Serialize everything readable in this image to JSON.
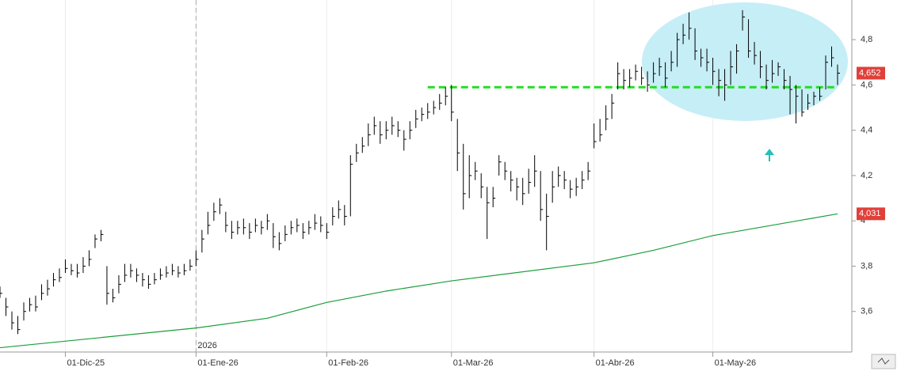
{
  "chart_data": {
    "type": "ohlc",
    "color": "#000000",
    "xlim": [
      0,
      143
    ],
    "xticks": [
      {
        "value": 11,
        "label": "01-Dic-25"
      },
      {
        "value": 33,
        "label": "01-Ene-26"
      },
      {
        "value": 55,
        "label": "01-Feb-26"
      },
      {
        "value": 76,
        "label": "01-Mar-26"
      },
      {
        "value": 100,
        "label": "01-Abr-26"
      },
      {
        "value": 120,
        "label": "01-May-26"
      }
    ],
    "year_label": {
      "value": 33,
      "label": "2026"
    },
    "ylim": [
      3.421,
      4.975
    ],
    "yticks": [
      {
        "value": 3.6,
        "label": "3,6"
      },
      {
        "value": 3.8,
        "label": "3,8"
      },
      {
        "value": 4.0,
        "label": "4"
      },
      {
        "value": 4.2,
        "label": "4,2"
      },
      {
        "value": 4.4,
        "label": "4,4"
      },
      {
        "value": 4.6,
        "label": "4,6"
      },
      {
        "value": 4.8,
        "label": "4,8"
      }
    ],
    "high": [
      3.71,
      3.66,
      3.6,
      3.58,
      3.64,
      3.66,
      3.67,
      3.72,
      3.74,
      3.77,
      3.79,
      3.83,
      3.81,
      3.81,
      3.84,
      3.87,
      3.94,
      3.96,
      3.8,
      3.7,
      3.76,
      3.81,
      3.81,
      3.79,
      3.77,
      3.76,
      3.77,
      3.79,
      3.8,
      3.81,
      3.8,
      3.81,
      3.83,
      3.87,
      3.96,
      4.04,
      4.08,
      4.1,
      4.04,
      4.0,
      4.0,
      4.01,
      3.99,
      4.01,
      4.0,
      4.03,
      3.99,
      3.95,
      3.98,
      4.0,
      4.01,
      3.99,
      4.0,
      4.03,
      4.02,
      3.99,
      4.06,
      4.09,
      4.07,
      4.29,
      4.34,
      4.37,
      4.43,
      4.46,
      4.44,
      4.44,
      4.46,
      4.44,
      4.4,
      4.44,
      4.49,
      4.5,
      4.52,
      4.53,
      4.56,
      4.59,
      4.6,
      4.45,
      4.34,
      4.29,
      4.26,
      4.21,
      4.15,
      4.15,
      4.29,
      4.26,
      4.22,
      4.19,
      4.19,
      4.23,
      4.29,
      4.22,
      4.12,
      4.22,
      4.24,
      4.22,
      4.18,
      4.19,
      4.22,
      4.26,
      4.43,
      4.45,
      4.51,
      4.56,
      4.7,
      4.67,
      4.67,
      4.69,
      4.68,
      4.66,
      4.7,
      4.72,
      4.7,
      4.75,
      4.83,
      4.87,
      4.92,
      4.85,
      4.76,
      4.76,
      4.72,
      4.67,
      4.67,
      4.75,
      4.78,
      4.93,
      4.89,
      4.79,
      4.75,
      4.69,
      4.71,
      4.7,
      4.67,
      4.64,
      4.6,
      4.58,
      4.56,
      4.57,
      4.59,
      4.73,
      4.77,
      4.69
    ],
    "low": [
      3.66,
      3.58,
      3.52,
      3.5,
      3.56,
      3.6,
      3.6,
      3.65,
      3.67,
      3.71,
      3.73,
      3.77,
      3.76,
      3.75,
      3.77,
      3.8,
      3.88,
      3.91,
      3.63,
      3.64,
      3.68,
      3.73,
      3.75,
      3.73,
      3.71,
      3.7,
      3.72,
      3.74,
      3.75,
      3.76,
      3.75,
      3.76,
      3.78,
      3.8,
      3.86,
      3.94,
      4.0,
      4.03,
      3.95,
      3.92,
      3.94,
      3.94,
      3.92,
      3.95,
      3.94,
      3.96,
      3.88,
      3.87,
      3.91,
      3.94,
      3.95,
      3.92,
      3.94,
      3.96,
      3.95,
      3.92,
      3.98,
      4.01,
      3.98,
      4.02,
      4.26,
      4.3,
      4.33,
      4.38,
      4.34,
      4.36,
      4.38,
      4.37,
      4.31,
      4.36,
      4.41,
      4.44,
      4.45,
      4.47,
      4.49,
      4.51,
      4.44,
      4.22,
      4.05,
      4.1,
      4.18,
      4.1,
      3.92,
      4.06,
      4.2,
      4.18,
      4.13,
      4.09,
      4.07,
      4.12,
      4.15,
      4.0,
      3.87,
      4.08,
      4.15,
      4.14,
      4.1,
      4.11,
      4.14,
      4.18,
      4.32,
      4.35,
      4.4,
      4.45,
      4.58,
      4.58,
      4.59,
      4.62,
      4.6,
      4.57,
      4.61,
      4.64,
      4.59,
      4.66,
      4.68,
      4.78,
      4.8,
      4.71,
      4.68,
      4.66,
      4.6,
      4.55,
      4.53,
      4.6,
      4.65,
      4.84,
      4.72,
      4.69,
      4.63,
      4.58,
      4.61,
      4.64,
      4.58,
      4.47,
      4.43,
      4.46,
      4.49,
      4.51,
      4.53,
      4.58,
      4.68,
      4.6
    ],
    "close": [
      3.68,
      3.62,
      3.55,
      3.52,
      3.6,
      3.63,
      3.62,
      3.68,
      3.7,
      3.74,
      3.75,
      3.79,
      3.78,
      3.77,
      3.8,
      3.83,
      3.92,
      3.94,
      3.68,
      3.66,
      3.72,
      3.76,
      3.78,
      3.76,
      3.74,
      3.72,
      3.74,
      3.76,
      3.77,
      3.78,
      3.77,
      3.78,
      3.8,
      3.83,
      3.92,
      3.98,
      4.04,
      4.07,
      3.98,
      3.95,
      3.97,
      3.97,
      3.95,
      3.98,
      3.97,
      4.0,
      3.93,
      3.9,
      3.94,
      3.97,
      3.98,
      3.95,
      3.97,
      3.99,
      3.98,
      3.95,
      4.02,
      4.05,
      4.02,
      4.25,
      4.3,
      4.33,
      4.38,
      4.42,
      4.38,
      4.4,
      4.42,
      4.4,
      4.36,
      4.4,
      4.45,
      4.47,
      4.48,
      4.5,
      4.52,
      4.55,
      4.48,
      4.3,
      4.12,
      4.2,
      4.22,
      4.15,
      4.08,
      4.1,
      4.26,
      4.22,
      4.18,
      4.15,
      4.12,
      4.17,
      4.22,
      4.05,
      4.02,
      4.15,
      4.2,
      4.18,
      4.14,
      4.15,
      4.18,
      4.22,
      4.35,
      4.38,
      4.45,
      4.52,
      4.65,
      4.62,
      4.63,
      4.66,
      4.63,
      4.6,
      4.65,
      4.68,
      4.63,
      4.7,
      4.8,
      4.82,
      4.85,
      4.75,
      4.72,
      4.7,
      4.66,
      4.62,
      4.6,
      4.68,
      4.75,
      4.9,
      4.75,
      4.73,
      4.68,
      4.62,
      4.65,
      4.68,
      4.62,
      4.58,
      4.55,
      4.48,
      4.52,
      4.55,
      4.55,
      4.7,
      4.72,
      4.652
    ],
    "last_close_label": "4,652",
    "average": {
      "color": "#1a9e3a",
      "x": [
        0,
        33,
        45,
        55,
        65,
        76,
        100,
        110,
        120,
        141
      ],
      "values": [
        3.44,
        3.527,
        3.57,
        3.64,
        3.69,
        3.735,
        3.815,
        3.87,
        3.935,
        4.031
      ],
      "last_label": "4,031"
    },
    "support": {
      "color": "#22dd22",
      "value": 4.59,
      "x": [
        72,
        141
      ]
    }
  }
}
